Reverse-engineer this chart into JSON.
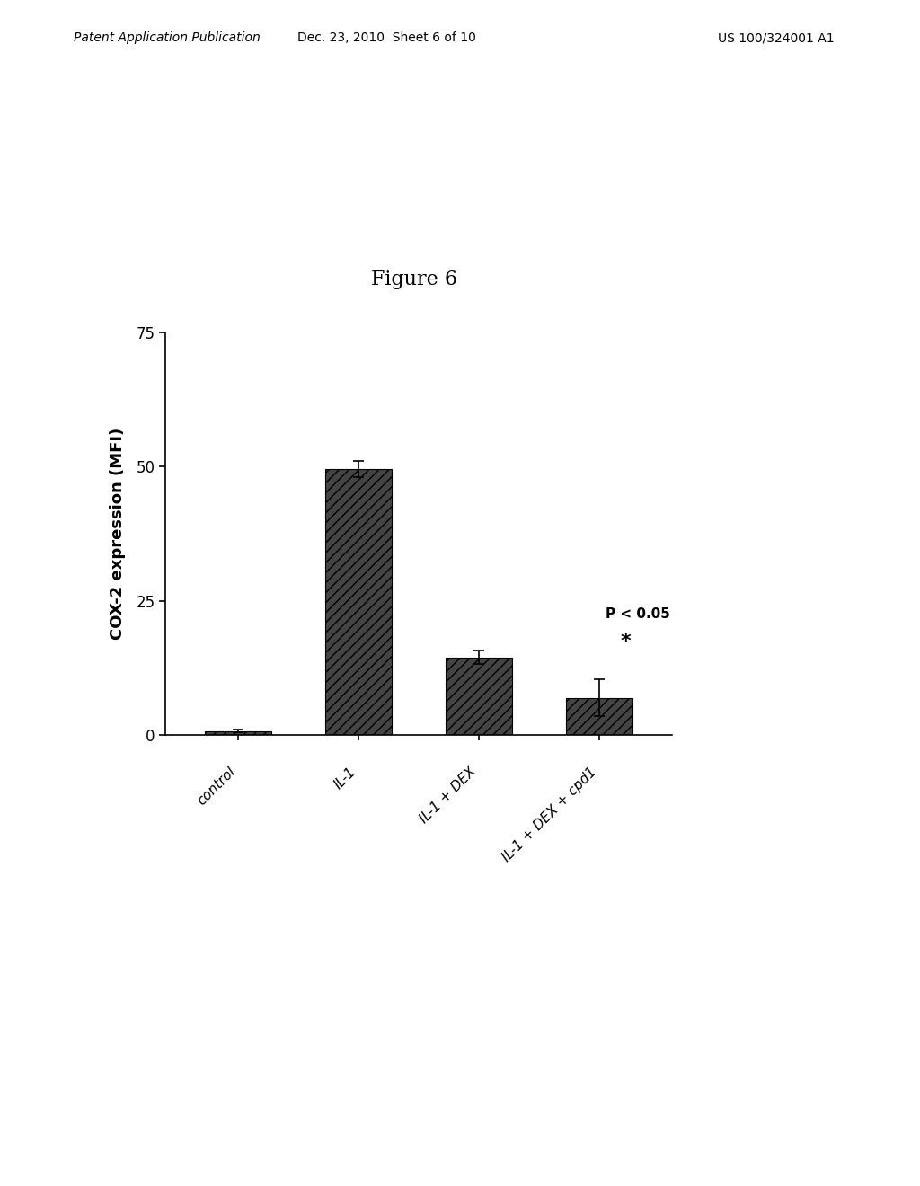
{
  "figure_title": "Figure 6",
  "header_left": "Patent Application Publication",
  "header_center": "Dec. 23, 2010  Sheet 6 of 10",
  "header_right": "US 100/324001 A1",
  "categories": [
    "control",
    "IL-1",
    "IL-1 + DEX",
    "IL-1 + DEX + cpd1"
  ],
  "values": [
    0.8,
    49.5,
    14.5,
    7.0
  ],
  "errors": [
    0.3,
    1.5,
    1.2,
    3.5
  ],
  "ylabel": "COX-2 expression (MFI)",
  "ylim": [
    0,
    75
  ],
  "yticks": [
    0,
    25,
    50,
    75
  ],
  "bar_color": "#2a2a2a",
  "bar_hatch": "///",
  "annotation_text": "P < 0.05",
  "annotation_star": "*",
  "background_color": "#ffffff"
}
